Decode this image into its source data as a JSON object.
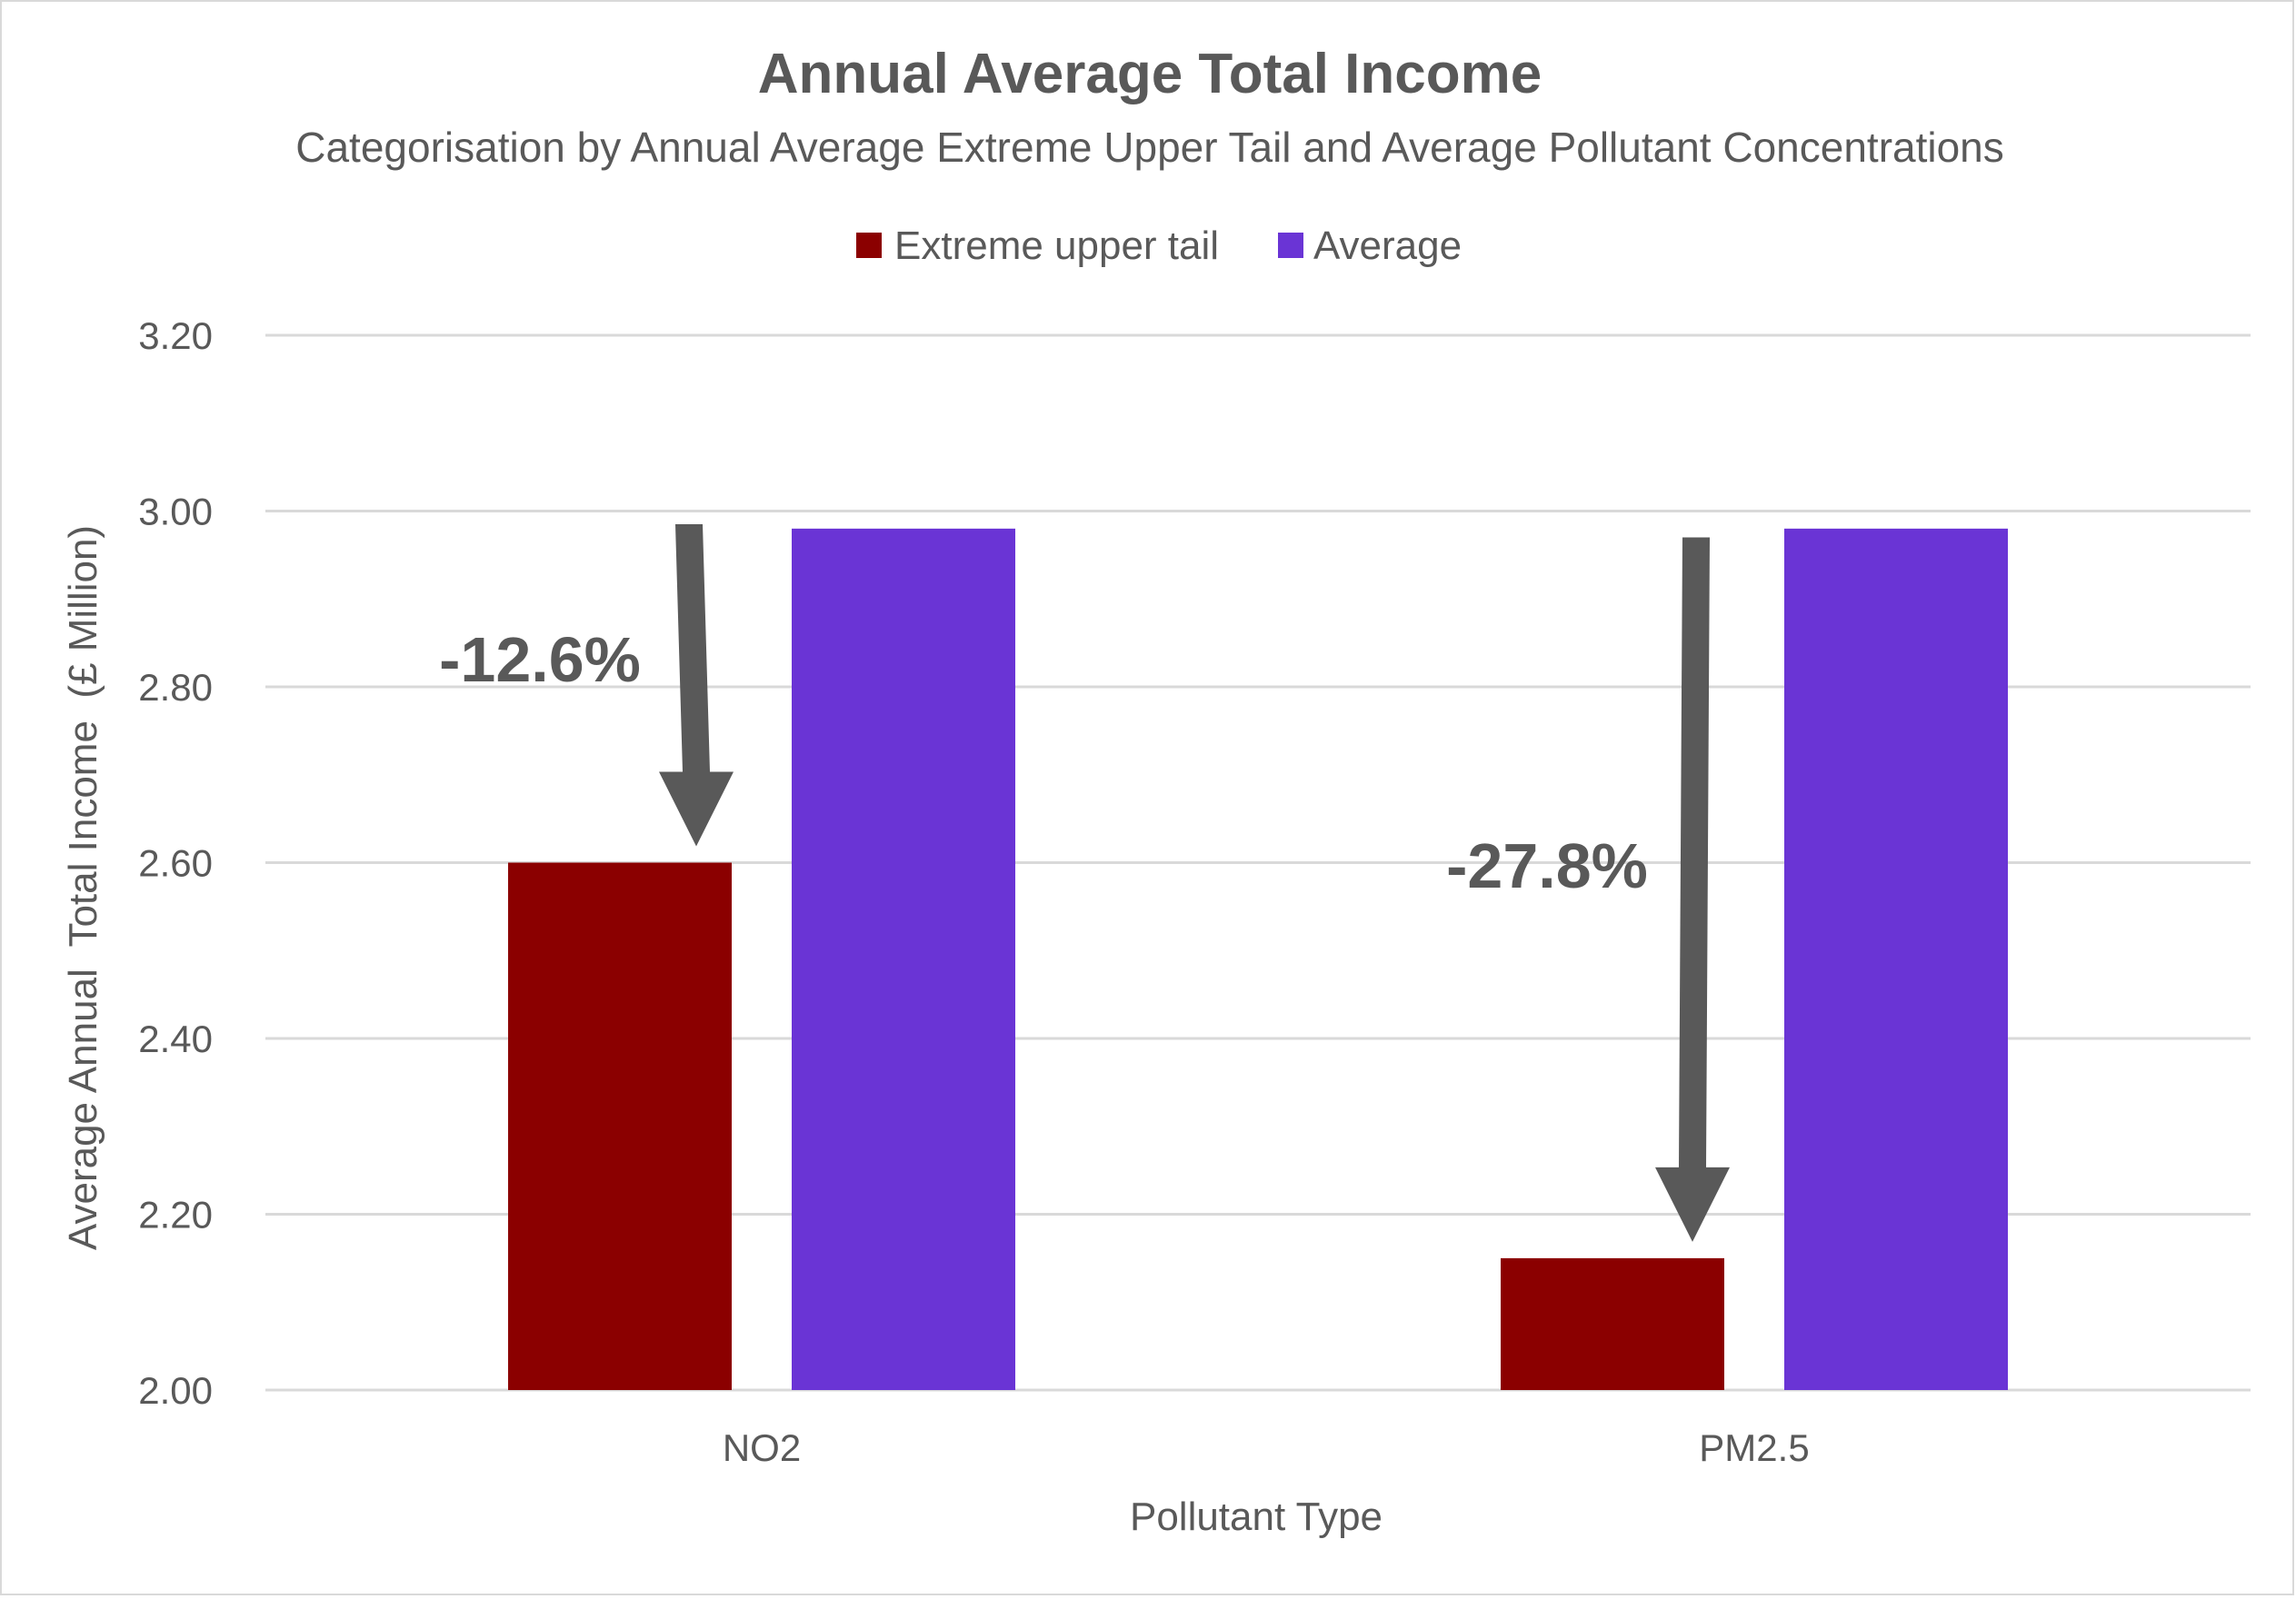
{
  "chart_data": {
    "type": "bar",
    "title": "Annual Average Total Income",
    "subtitle": "Categorisation by Annual Average Extreme Upper Tail and Average Pollutant Concentrations",
    "xlabel": "Pollutant Type",
    "ylabel": "Average Annual  Total Income  (£ Million)",
    "categories": [
      "NO2",
      "PM2.5"
    ],
    "series": [
      {
        "name": "Extreme upper tail",
        "color": "#8B0000",
        "values": [
          2.6,
          2.15
        ]
      },
      {
        "name": "Average",
        "color": "#6A34D5",
        "values": [
          2.98,
          2.98
        ]
      }
    ],
    "ylim": [
      2.0,
      3.2
    ],
    "yticks": [
      "2.00",
      "2.20",
      "2.40",
      "2.60",
      "2.80",
      "3.00",
      "3.20"
    ],
    "ytick_values": [
      2.0,
      2.2,
      2.4,
      2.6,
      2.8,
      3.0,
      3.2
    ],
    "grid": true,
    "legend": "top-center",
    "annotations": [
      {
        "text": "-12.6%",
        "category": "NO2",
        "arrow_from": 2.985,
        "arrow_to": 2.6
      },
      {
        "text": "-27.8%",
        "category": "PM2.5",
        "arrow_from": 2.97,
        "arrow_to": 2.15
      }
    ],
    "arrow_color": "#595959",
    "grid_color": "#d9d9d9"
  }
}
